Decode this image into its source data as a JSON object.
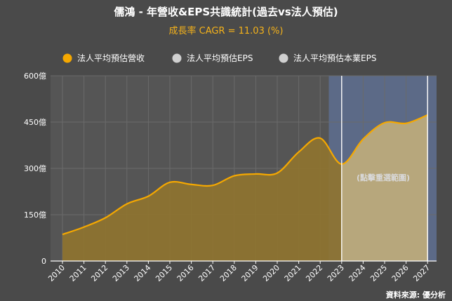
{
  "chart_data": {
    "type": "area",
    "title": "儒鴻 - 年營收&EPS共識統計(過去vs法人預估)",
    "subtitle": "成長率 CAGR = 11.03 (%)",
    "legend": [
      {
        "label": "法人平均預估營收",
        "color": "#f5a800"
      },
      {
        "label": "法人平均預估EPS",
        "color": "#d0d0d0"
      },
      {
        "label": "法人平均預估本業EPS",
        "color": "#d0d0d0"
      }
    ],
    "legend_placement": "top",
    "x_ticks": [
      "2010",
      "2011",
      "2012",
      "2013",
      "2014",
      "2015",
      "2016",
      "2017",
      "2018",
      "2019",
      "2020",
      "2021",
      "2022",
      "2023",
      "2024",
      "2025",
      "2026",
      "2027"
    ],
    "y_ticks": [
      {
        "value": 0,
        "label": "0"
      },
      {
        "value": 150,
        "label": "150億"
      },
      {
        "value": 300,
        "label": "300億"
      },
      {
        "value": 450,
        "label": "450億"
      },
      {
        "value": 600,
        "label": "600億"
      }
    ],
    "ylim": [
      0,
      600
    ],
    "grid": true,
    "series": [
      {
        "name": "法人平均預估營收",
        "color": "#f5a800",
        "x": [
          2010,
          2011,
          2012,
          2013,
          2014,
          2015,
          2016,
          2017,
          2018,
          2019,
          2020,
          2021,
          2022,
          2023,
          2024,
          2025,
          2026,
          2027
        ],
        "values": [
          86,
          110,
          140,
          185,
          210,
          255,
          248,
          245,
          276,
          282,
          285,
          353,
          398,
          314,
          395,
          448,
          446,
          473
        ]
      }
    ],
    "highlight_start": 2022.4,
    "selection_range": [
      2023,
      2027
    ],
    "selection_note": "(點擊重選範圍)",
    "source": "資料來源: 優分析",
    "colors": {
      "background": "#4a4a4a",
      "plot_background": "#555555",
      "grid": "#6a6a6a",
      "line": "#f5a800",
      "area": "#8f7430",
      "forecast_band": "#5c6a87",
      "selection_fill": "#b7a77c"
    }
  }
}
